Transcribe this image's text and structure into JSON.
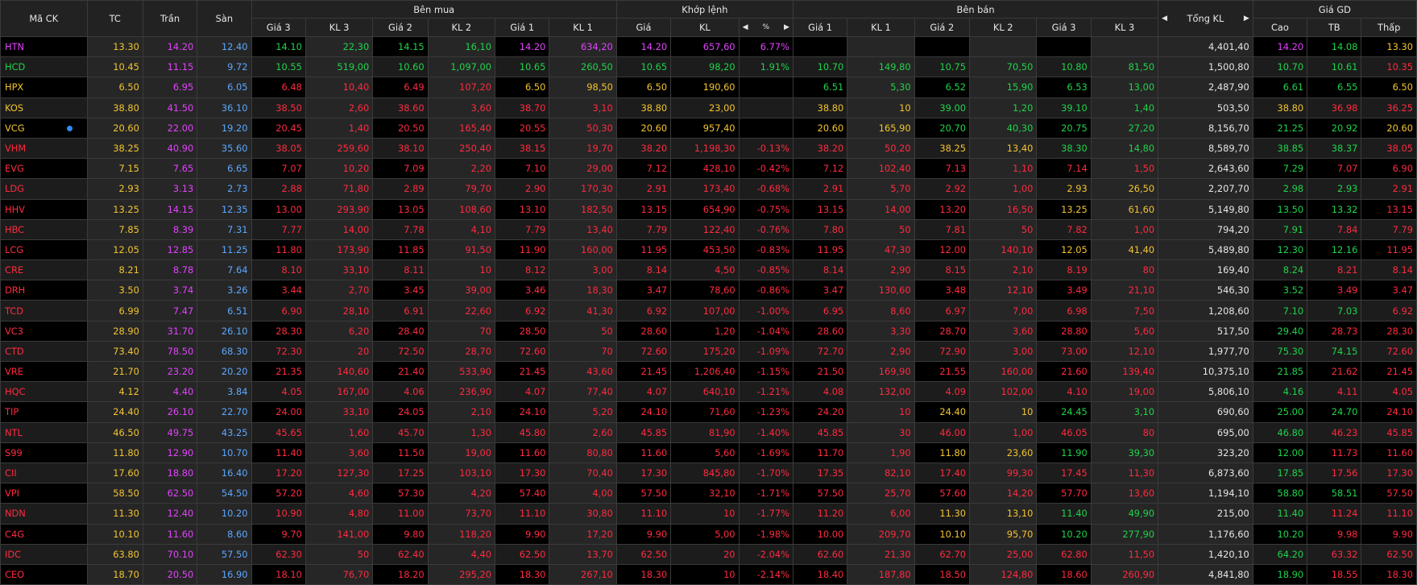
{
  "headers": {
    "sym": "Mã CK",
    "ref": "TC",
    "ceil": "Trần",
    "floor": "Sàn",
    "buy_group": "Bên mua",
    "match_group": "Khớp lệnh",
    "sell_group": "Bên bán",
    "total_vol": "Tổng KL",
    "price_group": "Giá GD",
    "gia3": "Giá 3",
    "kl3": "KL 3",
    "gia2": "Giá 2",
    "kl2": "KL 2",
    "gia1": "Giá 1",
    "kl1": "KL 1",
    "m_gia": "Giá",
    "m_kl": "KL",
    "pct_icon": "%",
    "high": "Cao",
    "avg": "TB",
    "low": "Thấp"
  },
  "colors": {
    "purple": "#e442ff",
    "yellow": "#f2c42f",
    "blue": "#5ba8ff",
    "green": "#1fd34a",
    "red": "#ff2a3f",
    "white": "#e6e6e6"
  },
  "rows": [
    {
      "s": "HTN",
      "sc": "p",
      "tc": "13.30",
      "ce": "14.20",
      "fl": "12.40",
      "b3": "14.10",
      "v3": "22,30",
      "b3c": "g",
      "b2": "14.15",
      "v2": "16,10",
      "b2c": "g",
      "b1": "14.20",
      "v1": "634,20",
      "b1c": "p",
      "mp": "14.20",
      "mv": "657,60",
      "mc": "p",
      "pct": "6.77%",
      "pc": "p",
      "a1": "",
      "av1": "",
      "a1c": "w",
      "a2": "",
      "av2": "",
      "a2c": "w",
      "a3": "",
      "av3": "",
      "a3c": "w",
      "tkl": "4,401,40",
      "hi": "14.20",
      "hic": "p",
      "av": "14.08",
      "avc": "g",
      "lo": "13.30",
      "loc": "y"
    },
    {
      "s": "HCD",
      "sc": "g",
      "tc": "10.45",
      "ce": "11.15",
      "fl": "9.72",
      "b3": "10.55",
      "v3": "519,00",
      "b3c": "g",
      "b2": "10.60",
      "v2": "1,097,00",
      "b2c": "g",
      "b1": "10.65",
      "v1": "260,50",
      "b1c": "g",
      "mp": "10.65",
      "mv": "98,20",
      "mc": "g",
      "pct": "1.91%",
      "pc": "g",
      "a1": "10.70",
      "av1": "149,80",
      "a1c": "g",
      "a2": "10.75",
      "av2": "70,50",
      "a2c": "g",
      "a3": "10.80",
      "av3": "81,50",
      "a3c": "g",
      "tkl": "1,500,80",
      "hi": "10.70",
      "hic": "g",
      "av": "10.61",
      "avc": "g",
      "lo": "10.35",
      "loc": "r"
    },
    {
      "s": "HPX",
      "sc": "y",
      "tc": "6.50",
      "ce": "6.95",
      "fl": "6.05",
      "b3": "6.48",
      "v3": "10,40",
      "b3c": "r",
      "b2": "6.49",
      "v2": "107,20",
      "b2c": "r",
      "b1": "6.50",
      "v1": "98,50",
      "b1c": "y",
      "mp": "6.50",
      "mv": "190,60",
      "mc": "y",
      "pct": "",
      "pc": "y",
      "a1": "6.51",
      "av1": "5,30",
      "a1c": "g",
      "a2": "6.52",
      "av2": "15,90",
      "a2c": "g",
      "a3": "6.53",
      "av3": "13,00",
      "a3c": "g",
      "tkl": "2,487,90",
      "hi": "6.61",
      "hic": "g",
      "av": "6.55",
      "avc": "g",
      "lo": "6.50",
      "loc": "y"
    },
    {
      "s": "KOS",
      "sc": "y",
      "tc": "38.80",
      "ce": "41.50",
      "fl": "36.10",
      "b3": "38.50",
      "v3": "2,60",
      "b3c": "r",
      "b2": "38.60",
      "v2": "3,60",
      "b2c": "r",
      "b1": "38.70",
      "v1": "3,10",
      "b1c": "r",
      "mp": "38.80",
      "mv": "23,00",
      "mc": "y",
      "pct": "",
      "pc": "y",
      "a1": "38.80",
      "av1": "10",
      "a1c": "y",
      "a2": "39.00",
      "av2": "1,20",
      "a2c": "g",
      "a3": "39.10",
      "av3": "1,40",
      "a3c": "g",
      "tkl": "503,50",
      "hi": "38.80",
      "hic": "y",
      "av": "36.98",
      "avc": "r",
      "lo": "36.25",
      "loc": "r"
    },
    {
      "s": "VCG",
      "sc": "y",
      "dot": true,
      "tc": "20.60",
      "ce": "22.00",
      "fl": "19.20",
      "b3": "20.45",
      "v3": "1,40",
      "b3c": "r",
      "b2": "20.50",
      "v2": "165,40",
      "b2c": "r",
      "b1": "20.55",
      "v1": "50,30",
      "b1c": "r",
      "mp": "20.60",
      "mv": "957,40",
      "mc": "y",
      "pct": "",
      "pc": "y",
      "a1": "20.60",
      "av1": "165,90",
      "a1c": "y",
      "a2": "20.70",
      "av2": "40,30",
      "a2c": "g",
      "a3": "20.75",
      "av3": "27,20",
      "a3c": "g",
      "tkl": "8,156,70",
      "hi": "21.25",
      "hic": "g",
      "av": "20.92",
      "avc": "g",
      "lo": "20.60",
      "loc": "y"
    },
    {
      "s": "VHM",
      "sc": "r",
      "tc": "38.25",
      "ce": "40.90",
      "fl": "35.60",
      "b3": "38.05",
      "v3": "259,60",
      "b3c": "r",
      "b2": "38.10",
      "v2": "250,40",
      "b2c": "r",
      "b1": "38.15",
      "v1": "19,70",
      "b1c": "r",
      "mp": "38.20",
      "mv": "1,198,30",
      "mc": "r",
      "pct": "-0.13%",
      "pc": "r",
      "a1": "38.20",
      "av1": "50,20",
      "a1c": "r",
      "a2": "38.25",
      "av2": "13,40",
      "a2c": "y",
      "a3": "38.30",
      "av3": "14,80",
      "a3c": "g",
      "tkl": "8,589,70",
      "hi": "38.85",
      "hic": "g",
      "av": "38.37",
      "avc": "g",
      "lo": "38.05",
      "loc": "r"
    },
    {
      "s": "EVG",
      "sc": "r",
      "tc": "7.15",
      "ce": "7.65",
      "fl": "6.65",
      "b3": "7.07",
      "v3": "10,20",
      "b3c": "r",
      "b2": "7.09",
      "v2": "2,20",
      "b2c": "r",
      "b1": "7.10",
      "v1": "29,00",
      "b1c": "r",
      "mp": "7.12",
      "mv": "428,10",
      "mc": "r",
      "pct": "-0.42%",
      "pc": "r",
      "a1": "7.12",
      "av1": "102,40",
      "a1c": "r",
      "a2": "7.13",
      "av2": "1,10",
      "a2c": "r",
      "a3": "7.14",
      "av3": "1,50",
      "a3c": "r",
      "tkl": "2,643,60",
      "hi": "7.29",
      "hic": "g",
      "av": "7.07",
      "avc": "r",
      "lo": "6.90",
      "loc": "r"
    },
    {
      "s": "LDG",
      "sc": "r",
      "tc": "2.93",
      "ce": "3.13",
      "fl": "2.73",
      "b3": "2.88",
      "v3": "71,80",
      "b3c": "r",
      "b2": "2.89",
      "v2": "79,70",
      "b2c": "r",
      "b1": "2.90",
      "v1": "170,30",
      "b1c": "r",
      "mp": "2.91",
      "mv": "173,40",
      "mc": "r",
      "pct": "-0.68%",
      "pc": "r",
      "a1": "2.91",
      "av1": "5,70",
      "a1c": "r",
      "a2": "2.92",
      "av2": "1,00",
      "a2c": "r",
      "a3": "2.93",
      "av3": "26,50",
      "a3c": "y",
      "tkl": "2,207,70",
      "hi": "2.98",
      "hic": "g",
      "av": "2.93",
      "avc": "g",
      "lo": "2.91",
      "loc": "r"
    },
    {
      "s": "HHV",
      "sc": "r",
      "tc": "13.25",
      "ce": "14.15",
      "fl": "12.35",
      "b3": "13.00",
      "v3": "293,90",
      "b3c": "r",
      "b2": "13.05",
      "v2": "108,60",
      "b2c": "r",
      "b1": "13.10",
      "v1": "182,50",
      "b1c": "r",
      "mp": "13.15",
      "mv": "654,90",
      "mc": "r",
      "pct": "-0.75%",
      "pc": "r",
      "a1": "13.15",
      "av1": "14,00",
      "a1c": "r",
      "a2": "13.20",
      "av2": "16,50",
      "a2c": "r",
      "a3": "13.25",
      "av3": "61,60",
      "a3c": "y",
      "tkl": "5,149,80",
      "hi": "13.50",
      "hic": "g",
      "av": "13.32",
      "avc": "g",
      "lo": "13.15",
      "loc": "r"
    },
    {
      "s": "HBC",
      "sc": "r",
      "tc": "7.85",
      "ce": "8.39",
      "fl": "7.31",
      "b3": "7.77",
      "v3": "14,00",
      "b3c": "r",
      "b2": "7.78",
      "v2": "4,10",
      "b2c": "r",
      "b1": "7.79",
      "v1": "13,40",
      "b1c": "r",
      "mp": "7.79",
      "mv": "122,40",
      "mc": "r",
      "pct": "-0.76%",
      "pc": "r",
      "a1": "7.80",
      "av1": "50",
      "a1c": "r",
      "a2": "7.81",
      "av2": "50",
      "a2c": "r",
      "a3": "7.82",
      "av3": "1,00",
      "a3c": "r",
      "tkl": "794,20",
      "hi": "7.91",
      "hic": "g",
      "av": "7.84",
      "avc": "r",
      "lo": "7.79",
      "loc": "r"
    },
    {
      "s": "LCG",
      "sc": "r",
      "tc": "12.05",
      "ce": "12.85",
      "fl": "11.25",
      "b3": "11.80",
      "v3": "173,90",
      "b3c": "r",
      "b2": "11.85",
      "v2": "91,50",
      "b2c": "r",
      "b1": "11.90",
      "v1": "160,00",
      "b1c": "r",
      "mp": "11.95",
      "mv": "453,50",
      "mc": "r",
      "pct": "-0.83%",
      "pc": "r",
      "a1": "11.95",
      "av1": "47,30",
      "a1c": "r",
      "a2": "12.00",
      "av2": "140,10",
      "a2c": "r",
      "a3": "12.05",
      "av3": "41,40",
      "a3c": "y",
      "tkl": "5,489,80",
      "hi": "12.30",
      "hic": "g",
      "av": "12.16",
      "avc": "g",
      "lo": "11.95",
      "loc": "r"
    },
    {
      "s": "CRE",
      "sc": "r",
      "tc": "8.21",
      "ce": "8.78",
      "fl": "7.64",
      "b3": "8.10",
      "v3": "33,10",
      "b3c": "r",
      "b2": "8.11",
      "v2": "10",
      "b2c": "r",
      "b1": "8.12",
      "v1": "3,00",
      "b1c": "r",
      "mp": "8.14",
      "mv": "4,50",
      "mc": "r",
      "pct": "-0.85%",
      "pc": "r",
      "a1": "8.14",
      "av1": "2,90",
      "a1c": "r",
      "a2": "8.15",
      "av2": "2,10",
      "a2c": "r",
      "a3": "8.19",
      "av3": "80",
      "a3c": "r",
      "tkl": "169,40",
      "hi": "8.24",
      "hic": "g",
      "av": "8.21",
      "avc": "r",
      "lo": "8.14",
      "loc": "r"
    },
    {
      "s": "DRH",
      "sc": "r",
      "tc": "3.50",
      "ce": "3.74",
      "fl": "3.26",
      "b3": "3.44",
      "v3": "2,70",
      "b3c": "r",
      "b2": "3.45",
      "v2": "39,00",
      "b2c": "r",
      "b1": "3.46",
      "v1": "18,30",
      "b1c": "r",
      "mp": "3.47",
      "mv": "78,60",
      "mc": "r",
      "pct": "-0.86%",
      "pc": "r",
      "a1": "3.47",
      "av1": "130,60",
      "a1c": "r",
      "a2": "3.48",
      "av2": "12,10",
      "a2c": "r",
      "a3": "3.49",
      "av3": "21,10",
      "a3c": "r",
      "tkl": "546,30",
      "hi": "3.52",
      "hic": "g",
      "av": "3.49",
      "avc": "r",
      "lo": "3.47",
      "loc": "r"
    },
    {
      "s": "TCD",
      "sc": "r",
      "tc": "6.99",
      "ce": "7.47",
      "fl": "6.51",
      "b3": "6.90",
      "v3": "28,10",
      "b3c": "r",
      "b2": "6.91",
      "v2": "22,60",
      "b2c": "r",
      "b1": "6.92",
      "v1": "41,30",
      "b1c": "r",
      "mp": "6.92",
      "mv": "107,00",
      "mc": "r",
      "pct": "-1.00%",
      "pc": "r",
      "a1": "6.95",
      "av1": "8,60",
      "a1c": "r",
      "a2": "6.97",
      "av2": "7,00",
      "a2c": "r",
      "a3": "6.98",
      "av3": "7,50",
      "a3c": "r",
      "tkl": "1,208,60",
      "hi": "7.10",
      "hic": "g",
      "av": "7.03",
      "avc": "g",
      "lo": "6.92",
      "loc": "r"
    },
    {
      "s": "VC3",
      "sc": "r",
      "tc": "28.90",
      "ce": "31.70",
      "fl": "26.10",
      "b3": "28.30",
      "v3": "6,20",
      "b3c": "r",
      "b2": "28.40",
      "v2": "70",
      "b2c": "r",
      "b1": "28.50",
      "v1": "50",
      "b1c": "r",
      "mp": "28.60",
      "mv": "1,20",
      "mc": "r",
      "pct": "-1.04%",
      "pc": "r",
      "a1": "28.60",
      "av1": "3,30",
      "a1c": "r",
      "a2": "28.70",
      "av2": "3,60",
      "a2c": "r",
      "a3": "28.80",
      "av3": "5,60",
      "a3c": "r",
      "tkl": "517,50",
      "hi": "29.40",
      "hic": "g",
      "av": "28.73",
      "avc": "r",
      "lo": "28.30",
      "loc": "r"
    },
    {
      "s": "CTD",
      "sc": "r",
      "tc": "73.40",
      "ce": "78.50",
      "fl": "68.30",
      "b3": "72.30",
      "v3": "20",
      "b3c": "r",
      "b2": "72.50",
      "v2": "28,70",
      "b2c": "r",
      "b1": "72.60",
      "v1": "70",
      "b1c": "r",
      "mp": "72.60",
      "mv": "175,20",
      "mc": "r",
      "pct": "-1.09%",
      "pc": "r",
      "a1": "72.70",
      "av1": "2,90",
      "a1c": "r",
      "a2": "72.90",
      "av2": "3,00",
      "a2c": "r",
      "a3": "73.00",
      "av3": "12,10",
      "a3c": "r",
      "tkl": "1,977,70",
      "hi": "75.30",
      "hic": "g",
      "av": "74.15",
      "avc": "g",
      "lo": "72.60",
      "loc": "r"
    },
    {
      "s": "VRE",
      "sc": "r",
      "tc": "21.70",
      "ce": "23.20",
      "fl": "20.20",
      "b3": "21.35",
      "v3": "140,60",
      "b3c": "r",
      "b2": "21.40",
      "v2": "533,90",
      "b2c": "r",
      "b1": "21.45",
      "v1": "43,60",
      "b1c": "r",
      "mp": "21.45",
      "mv": "1,206,40",
      "mc": "r",
      "pct": "-1.15%",
      "pc": "r",
      "a1": "21.50",
      "av1": "169,90",
      "a1c": "r",
      "a2": "21.55",
      "av2": "160,00",
      "a2c": "r",
      "a3": "21.60",
      "av3": "139,40",
      "a3c": "r",
      "tkl": "10,375,10",
      "hi": "21.85",
      "hic": "g",
      "av": "21.62",
      "avc": "r",
      "lo": "21.45",
      "loc": "r"
    },
    {
      "s": "HQC",
      "sc": "r",
      "tc": "4.12",
      "ce": "4.40",
      "fl": "3.84",
      "b3": "4.05",
      "v3": "167,00",
      "b3c": "r",
      "b2": "4.06",
      "v2": "236,90",
      "b2c": "r",
      "b1": "4.07",
      "v1": "77,40",
      "b1c": "r",
      "mp": "4.07",
      "mv": "640,10",
      "mc": "r",
      "pct": "-1.21%",
      "pc": "r",
      "a1": "4.08",
      "av1": "132,00",
      "a1c": "r",
      "a2": "4.09",
      "av2": "102,00",
      "a2c": "r",
      "a3": "4.10",
      "av3": "19,00",
      "a3c": "r",
      "tkl": "5,806,10",
      "hi": "4.16",
      "hic": "g",
      "av": "4.11",
      "avc": "r",
      "lo": "4.05",
      "loc": "r"
    },
    {
      "s": "TIP",
      "sc": "r",
      "tc": "24.40",
      "ce": "26.10",
      "fl": "22.70",
      "b3": "24.00",
      "v3": "33,10",
      "b3c": "r",
      "b2": "24.05",
      "v2": "2,10",
      "b2c": "r",
      "b1": "24.10",
      "v1": "5,20",
      "b1c": "r",
      "mp": "24.10",
      "mv": "71,60",
      "mc": "r",
      "pct": "-1.23%",
      "pc": "r",
      "a1": "24.20",
      "av1": "10",
      "a1c": "r",
      "a2": "24.40",
      "av2": "10",
      "a2c": "y",
      "a3": "24.45",
      "av3": "3,10",
      "a3c": "g",
      "tkl": "690,60",
      "hi": "25.00",
      "hic": "g",
      "av": "24.70",
      "avc": "g",
      "lo": "24.10",
      "loc": "r"
    },
    {
      "s": "NTL",
      "sc": "r",
      "tc": "46.50",
      "ce": "49.75",
      "fl": "43.25",
      "b3": "45.65",
      "v3": "1,60",
      "b3c": "r",
      "b2": "45.70",
      "v2": "1,30",
      "b2c": "r",
      "b1": "45.80",
      "v1": "2,60",
      "b1c": "r",
      "mp": "45.85",
      "mv": "81,90",
      "mc": "r",
      "pct": "-1.40%",
      "pc": "r",
      "a1": "45.85",
      "av1": "30",
      "a1c": "r",
      "a2": "46.00",
      "av2": "1,00",
      "a2c": "r",
      "a3": "46.05",
      "av3": "80",
      "a3c": "r",
      "tkl": "695,00",
      "hi": "46.80",
      "hic": "g",
      "av": "46.23",
      "avc": "r",
      "lo": "45.85",
      "loc": "r"
    },
    {
      "s": "S99",
      "sc": "r",
      "tc": "11.80",
      "ce": "12.90",
      "fl": "10.70",
      "b3": "11.40",
      "v3": "3,60",
      "b3c": "r",
      "b2": "11.50",
      "v2": "19,00",
      "b2c": "r",
      "b1": "11.60",
      "v1": "80,80",
      "b1c": "r",
      "mp": "11.60",
      "mv": "5,60",
      "mc": "r",
      "pct": "-1.69%",
      "pc": "r",
      "a1": "11.70",
      "av1": "1,90",
      "a1c": "r",
      "a2": "11.80",
      "av2": "23,60",
      "a2c": "y",
      "a3": "11.90",
      "av3": "39,30",
      "a3c": "g",
      "tkl": "323,20",
      "hi": "12.00",
      "hic": "g",
      "av": "11.73",
      "avc": "r",
      "lo": "11.60",
      "loc": "r"
    },
    {
      "s": "CII",
      "sc": "r",
      "tc": "17.60",
      "ce": "18.80",
      "fl": "16.40",
      "b3": "17.20",
      "v3": "127,30",
      "b3c": "r",
      "b2": "17.25",
      "v2": "103,10",
      "b2c": "r",
      "b1": "17.30",
      "v1": "70,40",
      "b1c": "r",
      "mp": "17.30",
      "mv": "845,80",
      "mc": "r",
      "pct": "-1.70%",
      "pc": "r",
      "a1": "17.35",
      "av1": "82,10",
      "a1c": "r",
      "a2": "17.40",
      "av2": "99,30",
      "a2c": "r",
      "a3": "17.45",
      "av3": "11,30",
      "a3c": "r",
      "tkl": "6,873,60",
      "hi": "17.85",
      "hic": "g",
      "av": "17.56",
      "avc": "r",
      "lo": "17.30",
      "loc": "r"
    },
    {
      "s": "VPI",
      "sc": "r",
      "tc": "58.50",
      "ce": "62.50",
      "fl": "54.50",
      "b3": "57.20",
      "v3": "4,60",
      "b3c": "r",
      "b2": "57.30",
      "v2": "4,20",
      "b2c": "r",
      "b1": "57.40",
      "v1": "4,00",
      "b1c": "r",
      "mp": "57.50",
      "mv": "32,10",
      "mc": "r",
      "pct": "-1.71%",
      "pc": "r",
      "a1": "57.50",
      "av1": "25,70",
      "a1c": "r",
      "a2": "57.60",
      "av2": "14,20",
      "a2c": "r",
      "a3": "57.70",
      "av3": "13,60",
      "a3c": "r",
      "tkl": "1,194,10",
      "hi": "58.80",
      "hic": "g",
      "av": "58.51",
      "avc": "g",
      "lo": "57.50",
      "loc": "r"
    },
    {
      "s": "NDN",
      "sc": "r",
      "tc": "11.30",
      "ce": "12.40",
      "fl": "10.20",
      "b3": "10.90",
      "v3": "4,80",
      "b3c": "r",
      "b2": "11.00",
      "v2": "73,70",
      "b2c": "r",
      "b1": "11.10",
      "v1": "30,80",
      "b1c": "r",
      "mp": "11.10",
      "mv": "10",
      "mc": "r",
      "pct": "-1.77%",
      "pc": "r",
      "a1": "11.20",
      "av1": "6,00",
      "a1c": "r",
      "a2": "11.30",
      "av2": "13,10",
      "a2c": "y",
      "a3": "11.40",
      "av3": "49,90",
      "a3c": "g",
      "tkl": "215,00",
      "hi": "11.40",
      "hic": "g",
      "av": "11.24",
      "avc": "r",
      "lo": "11.10",
      "loc": "r"
    },
    {
      "s": "C4G",
      "sc": "r",
      "tc": "10.10",
      "ce": "11.60",
      "fl": "8.60",
      "b3": "9.70",
      "v3": "141,00",
      "b3c": "r",
      "b2": "9.80",
      "v2": "118,20",
      "b2c": "r",
      "b1": "9.90",
      "v1": "17,20",
      "b1c": "r",
      "mp": "9.90",
      "mv": "5,00",
      "mc": "r",
      "pct": "-1.98%",
      "pc": "r",
      "a1": "10.00",
      "av1": "209,70",
      "a1c": "r",
      "a2": "10.10",
      "av2": "95,70",
      "a2c": "y",
      "a3": "10.20",
      "av3": "277,90",
      "a3c": "g",
      "tkl": "1,176,60",
      "hi": "10.20",
      "hic": "g",
      "av": "9.98",
      "avc": "r",
      "lo": "9.90",
      "loc": "r"
    },
    {
      "s": "IDC",
      "sc": "r",
      "tc": "63.80",
      "ce": "70.10",
      "fl": "57.50",
      "b3": "62.30",
      "v3": "50",
      "b3c": "r",
      "b2": "62.40",
      "v2": "4,40",
      "b2c": "r",
      "b1": "62.50",
      "v1": "13,70",
      "b1c": "r",
      "mp": "62.50",
      "mv": "20",
      "mc": "r",
      "pct": "-2.04%",
      "pc": "r",
      "a1": "62.60",
      "av1": "21,30",
      "a1c": "r",
      "a2": "62.70",
      "av2": "25,00",
      "a2c": "r",
      "a3": "62.80",
      "av3": "11,50",
      "a3c": "r",
      "tkl": "1,420,10",
      "hi": "64.20",
      "hic": "g",
      "av": "63.32",
      "avc": "r",
      "lo": "62.50",
      "loc": "r"
    },
    {
      "s": "CEO",
      "sc": "r",
      "tc": "18.70",
      "ce": "20.50",
      "fl": "16.90",
      "b3": "18.10",
      "v3": "76,70",
      "b3c": "r",
      "b2": "18.20",
      "v2": "295,20",
      "b2c": "r",
      "b1": "18.30",
      "v1": "267,10",
      "b1c": "r",
      "mp": "18.30",
      "mv": "10",
      "mc": "r",
      "pct": "-2.14%",
      "pc": "r",
      "a1": "18.40",
      "av1": "187,80",
      "a1c": "r",
      "a2": "18.50",
      "av2": "124,80",
      "a2c": "r",
      "a3": "18.60",
      "av3": "260,90",
      "a3c": "r",
      "tkl": "4,841,80",
      "hi": "18.90",
      "hic": "g",
      "av": "18.55",
      "avc": "r",
      "lo": "18.30",
      "loc": "r"
    }
  ]
}
